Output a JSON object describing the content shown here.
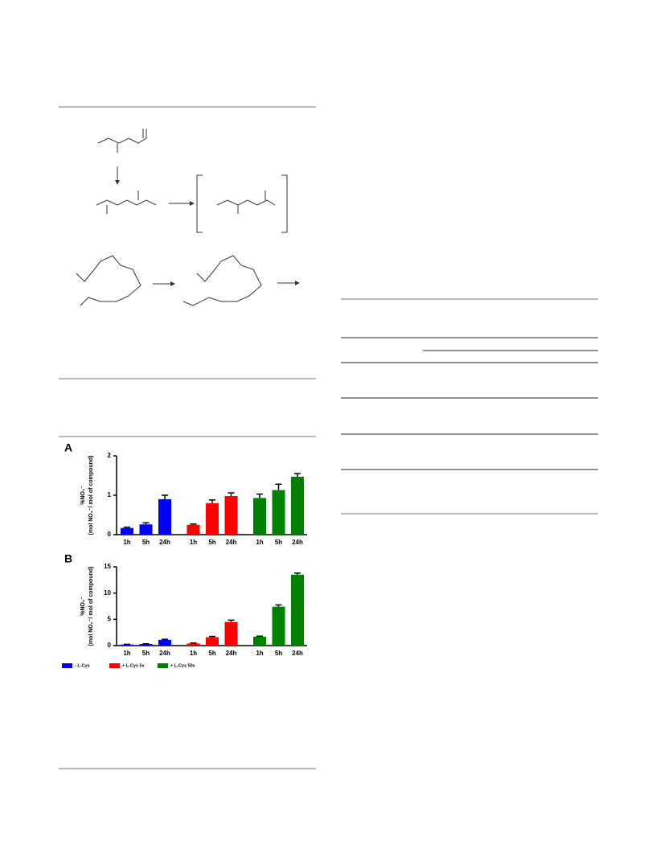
{
  "chart_data": [
    {
      "type": "bar",
      "label": "A",
      "ylabel": [
        "%NO₂⁻",
        "(mol NO₂⁻/ mol of compound)"
      ],
      "categories": [
        "1h",
        "5h",
        "24h",
        "1h",
        "5h",
        "24h",
        "1h",
        "5h",
        "24h"
      ],
      "series": [
        {
          "color": "#0000ff",
          "values": [
            0.17,
            0.26,
            0.9,
            null,
            null,
            null,
            null,
            null,
            null
          ],
          "errors": [
            0.02,
            0.04,
            0.1,
            null,
            null,
            null,
            null,
            null,
            null
          ]
        },
        {
          "color": "#ff0000",
          "values": [
            null,
            null,
            null,
            0.25,
            0.8,
            0.98,
            null,
            null,
            null
          ],
          "errors": [
            null,
            null,
            null,
            0.02,
            0.08,
            0.08,
            null,
            null,
            null
          ]
        },
        {
          "color": "#008000",
          "values": [
            null,
            null,
            null,
            null,
            null,
            null,
            0.93,
            1.13,
            1.47
          ],
          "errors": [
            null,
            null,
            null,
            null,
            null,
            null,
            0.1,
            0.15,
            0.08
          ]
        }
      ],
      "ylim": [
        0,
        2
      ],
      "yticks": [
        0,
        1,
        2
      ]
    },
    {
      "type": "bar",
      "label": "B",
      "ylabel": [
        "%NO₂⁻",
        "(mol NO₂⁻/ mol of compound)"
      ],
      "categories": [
        "1h",
        "5h",
        "24h",
        "1h",
        "5h",
        "24h",
        "1h",
        "5h",
        "24h"
      ],
      "series": [
        {
          "name": "- L-Cys",
          "color": "#0000ff",
          "values": [
            0.2,
            0.3,
            1.1,
            null,
            null,
            null,
            null,
            null,
            null
          ],
          "errors": [
            0.05,
            0.05,
            0.1,
            null,
            null,
            null,
            null,
            null,
            null
          ]
        },
        {
          "name": "+ L-Cys 5x",
          "color": "#ff0000",
          "values": [
            null,
            null,
            null,
            0.4,
            1.6,
            4.5,
            null,
            null,
            null
          ],
          "errors": [
            null,
            null,
            null,
            0.1,
            0.15,
            0.35,
            null,
            null,
            null
          ]
        },
        {
          "name": "+ L-Cys 50x",
          "color": "#008000",
          "values": [
            null,
            null,
            null,
            null,
            null,
            null,
            1.7,
            7.4,
            13.5
          ],
          "errors": [
            null,
            null,
            null,
            null,
            null,
            null,
            0.1,
            0.35,
            0.3
          ]
        }
      ],
      "ylim": [
        0,
        15
      ],
      "yticks": [
        0,
        5,
        10,
        15
      ],
      "legend": "bottom-left"
    }
  ]
}
